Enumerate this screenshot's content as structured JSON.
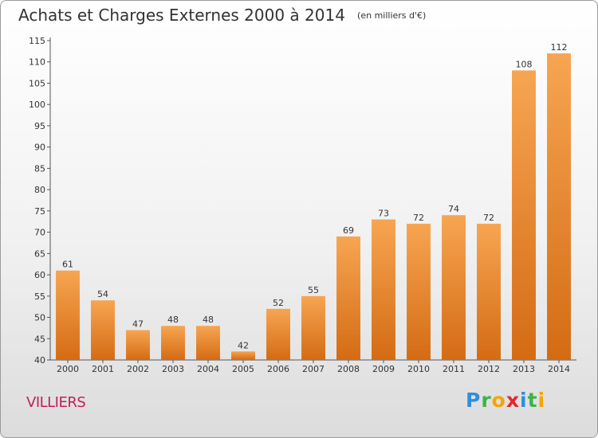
{
  "title": "Achats et Charges Externes 2000 à 2014",
  "subtitle": "(en milliers d'€)",
  "location": "VILLIERS",
  "logo": {
    "p": "P",
    "r": "r",
    "o": "o",
    "x": "x",
    "i": "i",
    "t": "t",
    "i2": "i"
  },
  "colors": {
    "bar_top": "#f7a552",
    "bar_bottom": "#d46b14",
    "location": "#c21f5b"
  },
  "chart_data": {
    "type": "bar",
    "title": "Achats et Charges Externes 2000 à 2014",
    "subtitle": "(en milliers d'€)",
    "categories": [
      "2000",
      "2001",
      "2002",
      "2003",
      "2004",
      "2005",
      "2006",
      "2007",
      "2008",
      "2009",
      "2010",
      "2011",
      "2012",
      "2013",
      "2014"
    ],
    "values": [
      61,
      54,
      47,
      48,
      48,
      42,
      52,
      55,
      69,
      73,
      72,
      74,
      72,
      108,
      112
    ],
    "ylim": [
      40,
      115
    ],
    "yticks": [
      40,
      45,
      50,
      55,
      60,
      65,
      70,
      75,
      80,
      85,
      90,
      95,
      100,
      105,
      110,
      115
    ],
    "grid": false,
    "data_labels": true
  }
}
